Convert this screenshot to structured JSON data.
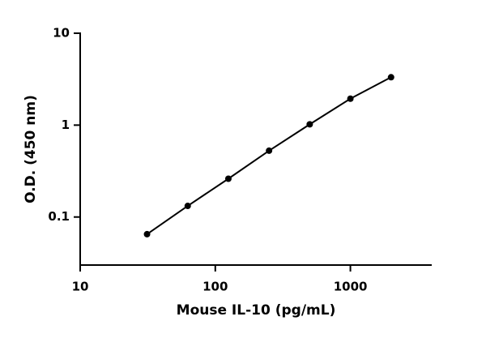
{
  "chart_data": {
    "type": "line",
    "xlabel": "Mouse IL-10 (pg/mL)",
    "ylabel": "O.D. (450 nm)",
    "x": [
      31.25,
      62.5,
      125,
      250,
      500,
      1000,
      2000
    ],
    "values": [
      0.065,
      0.132,
      0.261,
      0.527,
      1.02,
      1.94,
      3.32
    ],
    "color": "#000000",
    "xscale": "log",
    "yscale": "log",
    "xlim": [
      10,
      4000
    ],
    "ylim": [
      0.03,
      10
    ],
    "xticks": [
      10,
      100,
      1000
    ],
    "yticks": [
      0.1,
      1,
      10
    ],
    "grid": false
  }
}
